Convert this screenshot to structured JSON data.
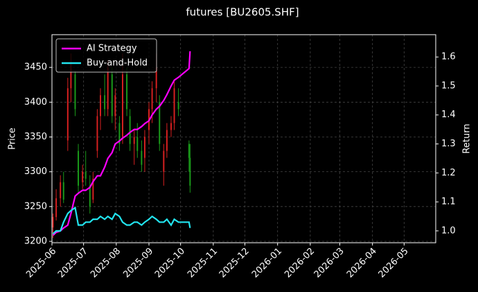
{
  "chart_data": {
    "type": "candlestick",
    "title": "futures [BU2605.SHF]",
    "ylabel": "Price",
    "y2label": "Return",
    "x": [
      "2025-06-02",
      "2025-06-05",
      "2025-06-09",
      "2025-06-12",
      "2025-06-16",
      "2025-06-19",
      "2025-06-23",
      "2025-06-26",
      "2025-06-30",
      "2025-07-03",
      "2025-07-07",
      "2025-07-10",
      "2025-07-14",
      "2025-07-17",
      "2025-07-21",
      "2025-07-24",
      "2025-07-28",
      "2025-07-31",
      "2025-08-04",
      "2025-08-07",
      "2025-08-11",
      "2025-08-14",
      "2025-08-18",
      "2025-08-21",
      "2025-08-25",
      "2025-08-28",
      "2025-09-01",
      "2025-09-04",
      "2025-09-08",
      "2025-09-11",
      "2025-09-15",
      "2025-09-18",
      "2025-09-22",
      "2025-09-25",
      "2025-09-29",
      "2025-10-09",
      "2025-10-10"
    ],
    "open": [
      3220,
      3235,
      3262,
      3285,
      3345,
      3420,
      3440,
      3330,
      3285,
      3300,
      3280,
      3260,
      3330,
      3380,
      3410,
      3390,
      3440,
      3380,
      3370,
      3350,
      3440,
      3380,
      3340,
      3350,
      3330,
      3320,
      3360,
      3390,
      3420,
      3400,
      3300,
      3330,
      3360,
      3370,
      3400,
      3340,
      3320
    ],
    "high": [
      3240,
      3275,
      3295,
      3300,
      3435,
      3470,
      3445,
      3340,
      3310,
      3330,
      3295,
      3300,
      3390,
      3420,
      3440,
      3460,
      3450,
      3420,
      3380,
      3470,
      3450,
      3390,
      3360,
      3370,
      3345,
      3360,
      3400,
      3430,
      3470,
      3410,
      3340,
      3370,
      3380,
      3430,
      3420,
      3345,
      3340
    ],
    "low": [
      3205,
      3230,
      3250,
      3255,
      3330,
      3400,
      3380,
      3270,
      3275,
      3280,
      3240,
      3255,
      3320,
      3360,
      3380,
      3380,
      3370,
      3360,
      3330,
      3340,
      3380,
      3330,
      3310,
      3320,
      3300,
      3300,
      3340,
      3370,
      3400,
      3330,
      3280,
      3320,
      3350,
      3360,
      3380,
      3300,
      3270
    ],
    "close": [
      3235,
      3262,
      3285,
      3260,
      3420,
      3455,
      3390,
      3280,
      3300,
      3290,
      3250,
      3290,
      3380,
      3410,
      3390,
      3450,
      3380,
      3410,
      3340,
      3440,
      3390,
      3340,
      3350,
      3330,
      3310,
      3350,
      3390,
      3420,
      3450,
      3340,
      3330,
      3360,
      3370,
      3420,
      3390,
      3320,
      3280
    ],
    "up_color": "#d62020",
    "down_color": "#1a9a1a",
    "series": [
      {
        "name": "AI Strategy",
        "color": "#ff00ff",
        "axis": "y2",
        "values": [
          0.985,
          0.995,
          1.0,
          1.01,
          1.02,
          1.06,
          1.12,
          1.13,
          1.14,
          1.14,
          1.15,
          1.17,
          1.19,
          1.19,
          1.22,
          1.25,
          1.27,
          1.3,
          1.31,
          1.32,
          1.33,
          1.34,
          1.35,
          1.35,
          1.36,
          1.37,
          1.38,
          1.4,
          1.42,
          1.43,
          1.45,
          1.47,
          1.5,
          1.52,
          1.53,
          1.56,
          1.62
        ]
      },
      {
        "name": "Buy-and-Hold",
        "color": "#22e5f0",
        "axis": "y2",
        "values": [
          0.99,
          1.0,
          1.0,
          1.03,
          1.06,
          1.07,
          1.08,
          1.02,
          1.02,
          1.03,
          1.03,
          1.04,
          1.04,
          1.05,
          1.04,
          1.05,
          1.04,
          1.06,
          1.05,
          1.03,
          1.02,
          1.02,
          1.03,
          1.03,
          1.02,
          1.03,
          1.04,
          1.05,
          1.04,
          1.03,
          1.03,
          1.04,
          1.02,
          1.04,
          1.03,
          1.03,
          1.01
        ]
      }
    ],
    "xlim": [
      "2025-06-01",
      "2026-05-31"
    ],
    "xticks": [
      {
        "value": "2025-06-01",
        "label": "2025-06"
      },
      {
        "value": "2025-07-01",
        "label": "2025-07"
      },
      {
        "value": "2025-08-01",
        "label": "2025-08"
      },
      {
        "value": "2025-09-01",
        "label": "2025-09"
      },
      {
        "value": "2025-10-01",
        "label": "2025-10"
      },
      {
        "value": "2025-11-01",
        "label": "2025-11"
      },
      {
        "value": "2025-12-01",
        "label": "2025-12"
      },
      {
        "value": "2026-01-01",
        "label": "2026-01"
      },
      {
        "value": "2026-02-01",
        "label": "2026-02"
      },
      {
        "value": "2026-03-01",
        "label": "2026-03"
      },
      {
        "value": "2026-04-01",
        "label": "2026-04"
      },
      {
        "value": "2026-05-01",
        "label": "2026-05"
      }
    ],
    "ylim": [
      3198,
      3497
    ],
    "yticks": [
      3200,
      3250,
      3300,
      3350,
      3400,
      3450
    ],
    "y2lim": [
      0.959,
      1.677
    ],
    "y2ticks": [
      {
        "value": 1,
        "label": "1.0"
      },
      1.1,
      1.2,
      1.3,
      1.4,
      1.5,
      1.6
    ],
    "grid": true,
    "legend": "upper left"
  }
}
